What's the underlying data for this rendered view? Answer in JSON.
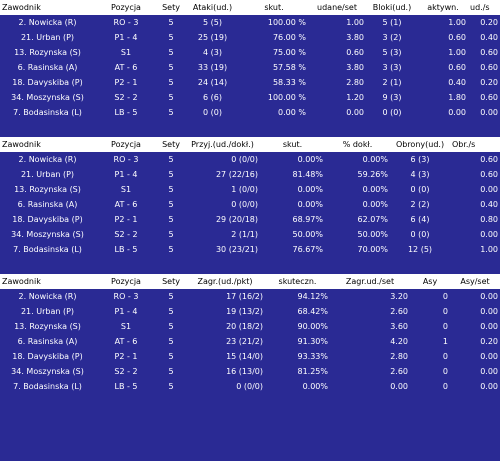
{
  "tables": [
    {
      "columns": [
        "Zawodnik",
        "Pozycja",
        "Sety",
        "Ataki(ud.)",
        "skut.",
        "udane/set",
        "Bloki(ud.)",
        "aktywn.",
        "ud./s"
      ],
      "rows": [
        [
          "2. Nowicka (R)",
          "RO - 3",
          "5",
          "5 (5)",
          "100.00 %",
          "1.00",
          "5 (1)",
          "1.00",
          "0.20"
        ],
        [
          "21. Urban (P)",
          "P1 - 4",
          "5",
          "25 (19)",
          "76.00 %",
          "3.80",
          "3 (2)",
          "0.60",
          "0.40"
        ],
        [
          "13. Rozynska (S)",
          "S1",
          "5",
          "4 (3)",
          "75.00 %",
          "0.60",
          "5 (3)",
          "1.00",
          "0.60"
        ],
        [
          "6. Rasinska (A)",
          "AT - 6",
          "5",
          "33 (19)",
          "57.58 %",
          "3.80",
          "3 (3)",
          "0.60",
          "0.60"
        ],
        [
          "18. Davyskiba (P)",
          "P2 - 1",
          "5",
          "24 (14)",
          "58.33 %",
          "2.80",
          "2 (1)",
          "0.40",
          "0.20"
        ],
        [
          "34. Moszynska (S)",
          "S2 - 2",
          "5",
          "6 (6)",
          "100.00 %",
          "1.20",
          "9 (3)",
          "1.80",
          "0.60"
        ],
        [
          "7. Bodasinska (L)",
          "LB - 5",
          "5",
          "0 (0)",
          "0.00 %",
          "0.00",
          "0 (0)",
          "0.00",
          "0.00"
        ]
      ]
    },
    {
      "columns": [
        "Zawodnik",
        "Pozycja",
        "Sety",
        "Przyj.(ud./dokł.)",
        "skut.",
        "% dokł.",
        "Obrony(ud.)",
        "Obr./s"
      ],
      "rows": [
        [
          "2. Nowicka (R)",
          "RO - 3",
          "5",
          "0 (0/0)",
          "0.00%",
          "0.00%",
          "6 (3)",
          "0.60"
        ],
        [
          "21. Urban (P)",
          "P1 - 4",
          "5",
          "27 (22/16)",
          "81.48%",
          "59.26%",
          "4 (3)",
          "0.60"
        ],
        [
          "13. Rozynska (S)",
          "S1",
          "5",
          "1 (0/0)",
          "0.00%",
          "0.00%",
          "0 (0)",
          "0.00"
        ],
        [
          "6. Rasinska (A)",
          "AT - 6",
          "5",
          "0 (0/0)",
          "0.00%",
          "0.00%",
          "2 (2)",
          "0.40"
        ],
        [
          "18. Davyskiba (P)",
          "P2 - 1",
          "5",
          "29 (20/18)",
          "68.97%",
          "62.07%",
          "6 (4)",
          "0.80"
        ],
        [
          "34. Moszynska (S)",
          "S2 - 2",
          "5",
          "2 (1/1)",
          "50.00%",
          "50.00%",
          "0 (0)",
          "0.00"
        ],
        [
          "7. Bodasinska (L)",
          "LB - 5",
          "5",
          "30 (23/21)",
          "76.67%",
          "70.00%",
          "12 (5)",
          "1.00"
        ]
      ]
    },
    {
      "columns": [
        "Zawodnik",
        "Pozycja",
        "Sety",
        "Zagr.(ud./pkt)",
        "skuteczn.",
        "Zagr.ud./set",
        "Asy",
        "Asy/set"
      ],
      "rows": [
        [
          "2. Nowicka (R)",
          "RO - 3",
          "5",
          "17 (16/2)",
          "94.12%",
          "3.20",
          "0",
          "0.00"
        ],
        [
          "21. Urban (P)",
          "P1 - 4",
          "5",
          "19 (13/2)",
          "68.42%",
          "2.60",
          "0",
          "0.00"
        ],
        [
          "13. Rozynska (S)",
          "S1",
          "5",
          "20 (18/2)",
          "90.00%",
          "3.60",
          "0",
          "0.00"
        ],
        [
          "6. Rasinska (A)",
          "AT - 6",
          "5",
          "23 (21/2)",
          "91.30%",
          "4.20",
          "1",
          "0.20"
        ],
        [
          "18. Davyskiba (P)",
          "P2 - 1",
          "5",
          "15 (14/0)",
          "93.33%",
          "2.80",
          "0",
          "0.00"
        ],
        [
          "34. Moszynska (S)",
          "S2 - 2",
          "5",
          "16 (13/0)",
          "81.25%",
          "2.60",
          "0",
          "0.00"
        ],
        [
          "7. Bodasinska (L)",
          "LB - 5",
          "5",
          "0 (0/0)",
          "0.00%",
          "0.00",
          "0",
          "0.00"
        ]
      ]
    }
  ],
  "colors": {
    "background": "#2a2a94",
    "header_bg": "#ffffff",
    "text": "#ffffff"
  }
}
